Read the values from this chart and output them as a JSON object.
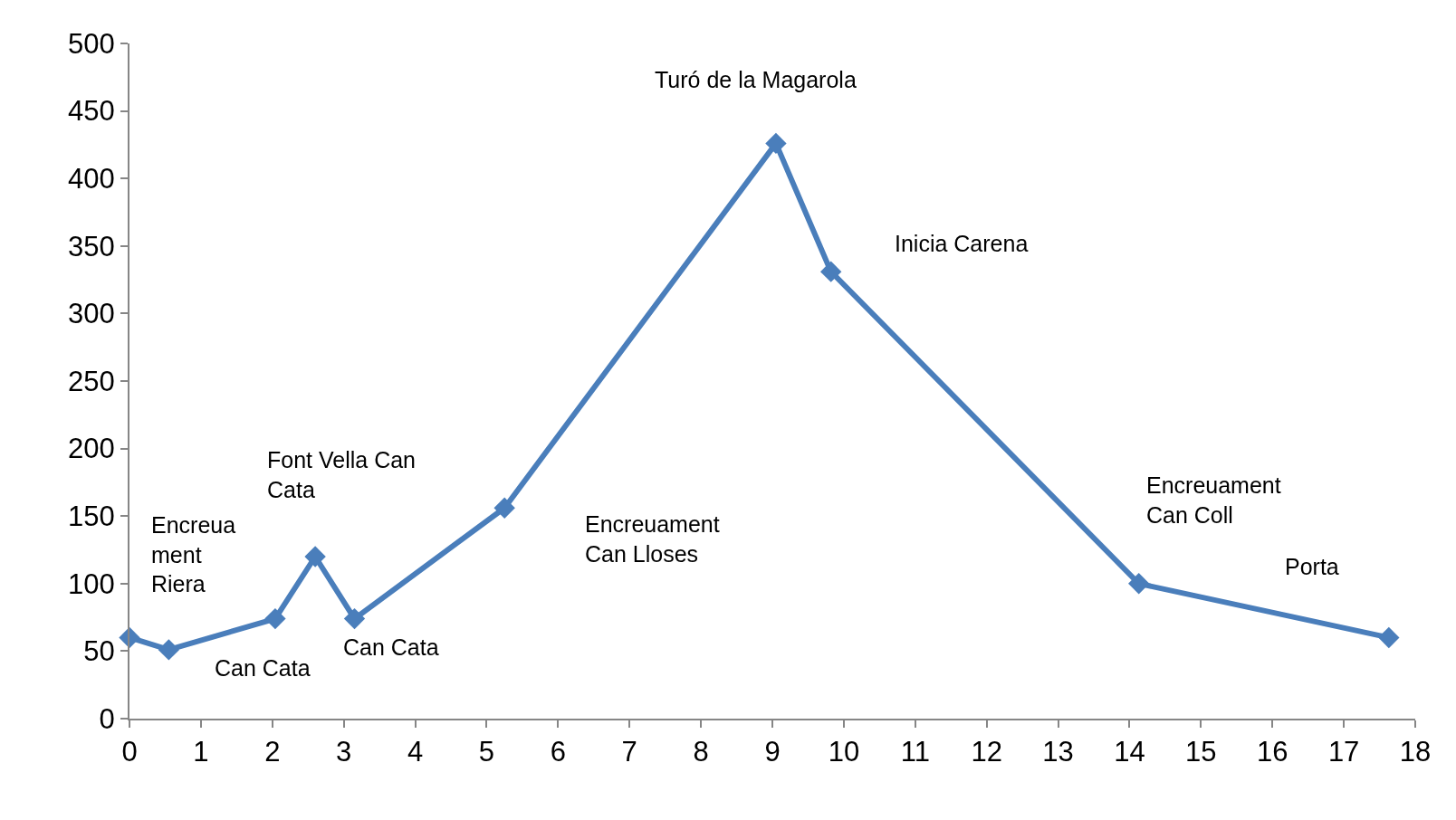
{
  "chart_data": {
    "type": "line",
    "x": [
      0,
      0.55,
      2.04,
      2.6,
      3.15,
      5.25,
      9.05,
      9.82,
      14.13,
      17.63
    ],
    "series": [
      {
        "color": "#4a7ebb",
        "values": [
          60,
          51,
          74,
          120,
          74,
          156,
          426,
          331,
          100,
          60
        ]
      }
    ],
    "xlim": [
      0,
      18
    ],
    "xticks": [
      0,
      1,
      2,
      3,
      4,
      5,
      6,
      7,
      8,
      9,
      10,
      11,
      12,
      13,
      14,
      15,
      16,
      17,
      18
    ],
    "ylim": [
      0,
      500
    ],
    "yticks": [
      0,
      50,
      100,
      150,
      200,
      250,
      300,
      350,
      400,
      450,
      500
    ],
    "marker": "diamond",
    "line_style": "solid",
    "annotations": [
      {
        "text": "Encreua\nment\nRiera",
        "x": 0.55,
        "y": 51
      },
      {
        "text": "Can Cata",
        "x": 2.04,
        "y": 74
      },
      {
        "text": "Font Vella Can\nCata",
        "x": 2.6,
        "y": 120
      },
      {
        "text": "Can Cata",
        "x": 3.15,
        "y": 74
      },
      "Encreuament\nCan Lloses",
      {
        "text": "Turó de la Magarola",
        "x": 9.05,
        "y": 426
      },
      {
        "text": "Inicia Carena",
        "x": 9.82,
        "y": 331
      },
      {
        "text": "Encreuament\nCan Coll",
        "x": 14.13,
        "y": 100
      },
      "Porta"
    ]
  }
}
